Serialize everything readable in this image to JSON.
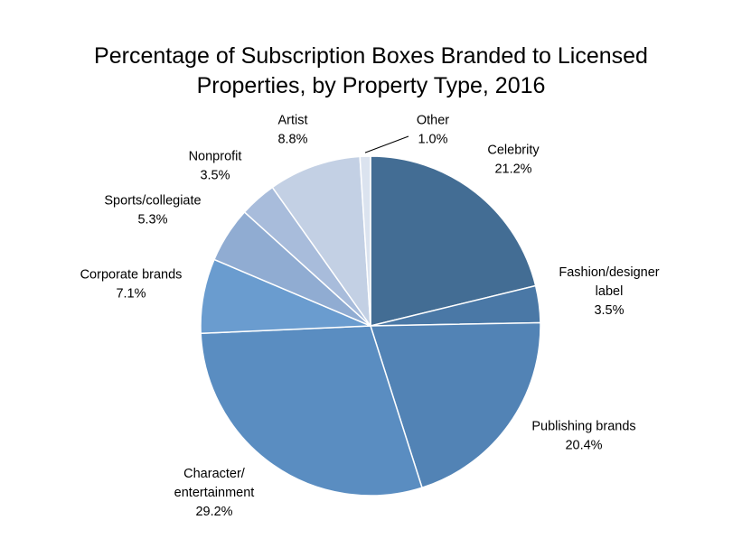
{
  "chart_data": {
    "type": "pie",
    "title_lines": [
      "Percentage of Subscription Boxes Branded to Licensed",
      "Properties, by Property Type, 2016"
    ],
    "slices": [
      {
        "label_lines": [
          "Celebrity"
        ],
        "value_label": "21.2%",
        "value": 21.2,
        "color": "#436d94"
      },
      {
        "label_lines": [
          "Fashion/designer",
          "label"
        ],
        "value_label": "3.5%",
        "value": 3.5,
        "color": "#4a78a6"
      },
      {
        "label_lines": [
          "Publishing brands"
        ],
        "value_label": "20.4%",
        "value": 20.4,
        "color": "#5283b5"
      },
      {
        "label_lines": [
          "Character/",
          "entertainment"
        ],
        "value_label": "29.2%",
        "value": 29.2,
        "color": "#5a8dc1"
      },
      {
        "label_lines": [
          "Corporate brands"
        ],
        "value_label": "7.1%",
        "value": 7.1,
        "color": "#6a9ccf"
      },
      {
        "label_lines": [
          "Sports/collegiate"
        ],
        "value_label": "5.3%",
        "value": 5.3,
        "color": "#90acd2"
      },
      {
        "label_lines": [
          "Nonprofit"
        ],
        "value_label": "3.5%",
        "value": 3.5,
        "color": "#a8bcdb"
      },
      {
        "label_lines": [
          "Artist"
        ],
        "value_label": "8.8%",
        "value": 8.8,
        "color": "#c3d0e4"
      },
      {
        "label_lines": [
          "Other"
        ],
        "value_label": "1.0%",
        "value": 1.0,
        "color": "#dbe3ef"
      }
    ],
    "start_angle": "12 o'clock",
    "direction": "clockwise",
    "legend": "none (labels beside slices)"
  }
}
